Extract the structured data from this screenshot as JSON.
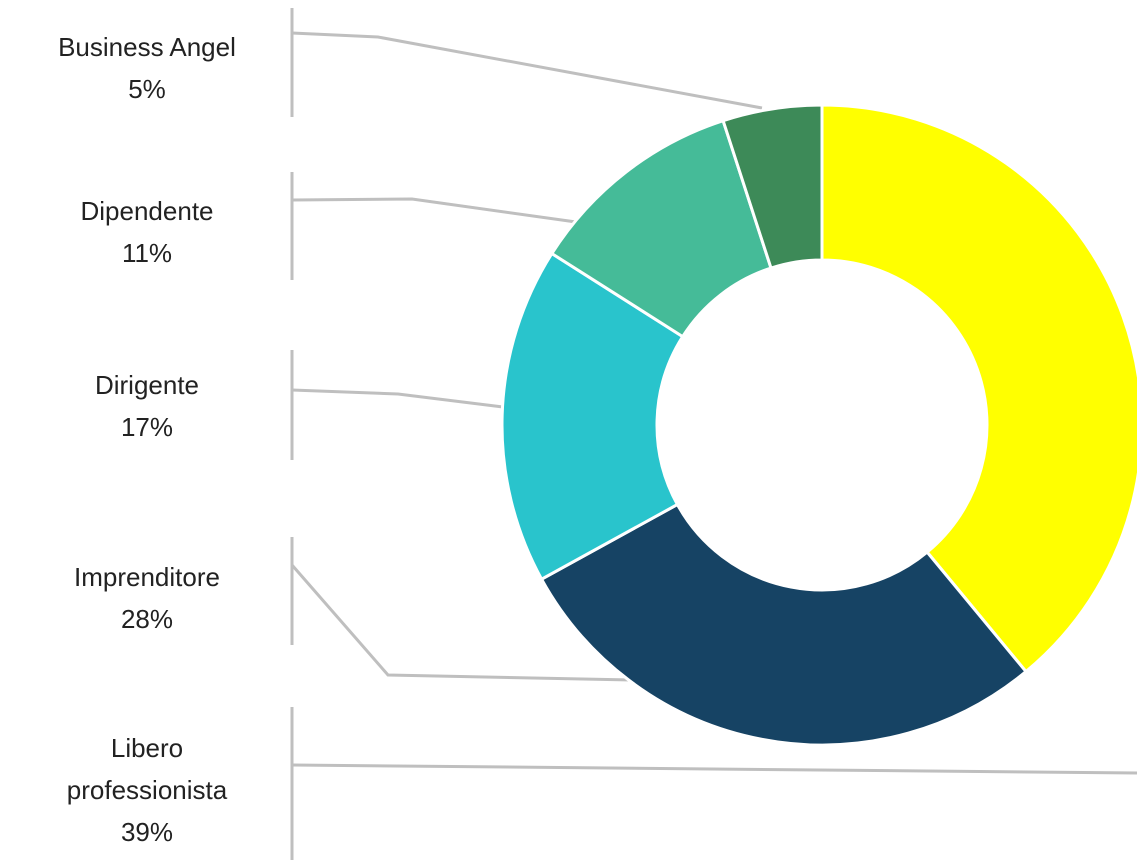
{
  "chart_data": {
    "type": "pie",
    "categories": [
      "Libero professionista",
      "Imprenditore",
      "Dirigente",
      "Dipendente",
      "Business Angel"
    ],
    "values": [
      39,
      28,
      17,
      11,
      5
    ],
    "value_labels": [
      "39%",
      "28%",
      "17%",
      "11%",
      "5%"
    ],
    "colors": [
      "#ffff00",
      "#164364",
      "#29c4cc",
      "#45bb98",
      "#3d8a58"
    ]
  }
}
